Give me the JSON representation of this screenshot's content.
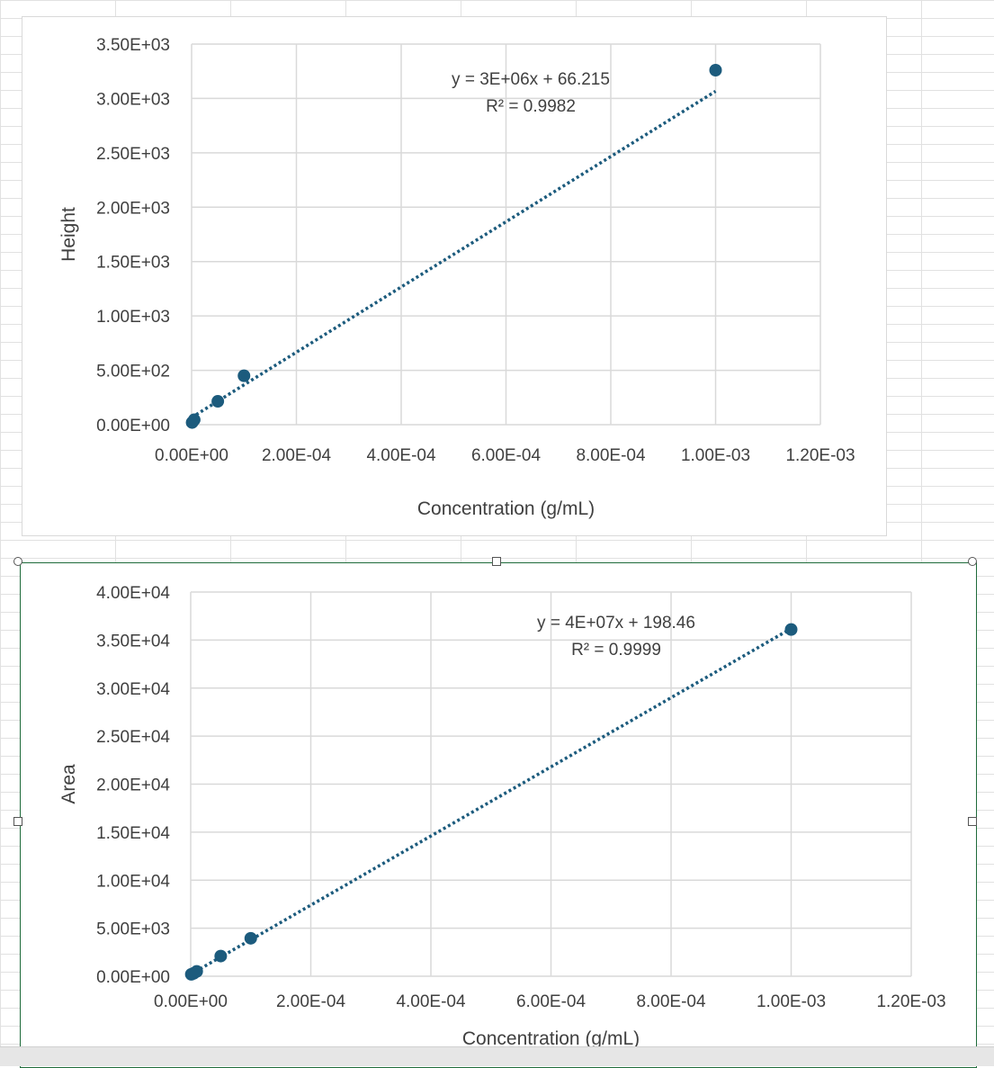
{
  "colors": {
    "marker": "#1c5b7d",
    "trendline": "#1c5b7d",
    "gridline": "#d9d9d9",
    "text": "#404040",
    "selection": "#1e6b3a"
  },
  "chart_data": [
    {
      "type": "scatter",
      "title": "",
      "xlabel": "Concentration (g/mL)",
      "ylabel": "Height",
      "xlim": [
        0,
        0.0012
      ],
      "ylim": [
        0,
        3500
      ],
      "grid": true,
      "legend": "none",
      "x_ticks": [
        "0.00E+00",
        "2.00E-04",
        "4.00E-04",
        "6.00E-04",
        "8.00E-04",
        "1.00E-03",
        "1.20E-03"
      ],
      "y_ticks": [
        "0.00E+00",
        "5.00E+02",
        "1.00E+03",
        "1.50E+03",
        "2.00E+03",
        "2.50E+03",
        "3.00E+03",
        "3.50E+03"
      ],
      "series": [
        {
          "x": [
            1e-06,
            5e-06,
            5e-05,
            0.0001,
            0.001
          ],
          "y": [
            20,
            45,
            215,
            450,
            3260
          ]
        }
      ],
      "trendline": {
        "type": "linear",
        "slope": 3000000,
        "intercept": 66.215,
        "style": "dotted",
        "equation": "y = 3E+06x + 66.215",
        "r2": "R² = 0.9982"
      }
    },
    {
      "type": "scatter",
      "title": "",
      "xlabel": "Concentration (g/mL)",
      "ylabel": "Area",
      "xlim": [
        0,
        0.0012
      ],
      "ylim": [
        0,
        40000
      ],
      "grid": true,
      "legend": "none",
      "x_ticks": [
        "0.00E+00",
        "2.00E-04",
        "4.00E-04",
        "6.00E-04",
        "8.00E-04",
        "1.00E-03",
        "1.20E-03"
      ],
      "y_ticks": [
        "0.00E+00",
        "5.00E+03",
        "1.00E+04",
        "1.50E+04",
        "2.00E+04",
        "2.50E+04",
        "3.00E+04",
        "3.50E+04",
        "4.00E+04"
      ],
      "series": [
        {
          "x": [
            1e-06,
            5e-06,
            1e-05,
            5e-05,
            0.0001,
            0.001
          ],
          "y": [
            200,
            300,
            500,
            2100,
            3950,
            36100
          ]
        }
      ],
      "trendline": {
        "type": "linear",
        "slope": 36000000,
        "intercept": 198.46,
        "style": "dotted",
        "equation": "y = 4E+07x + 198.46",
        "r2": "R² = 0.9999"
      }
    }
  ]
}
